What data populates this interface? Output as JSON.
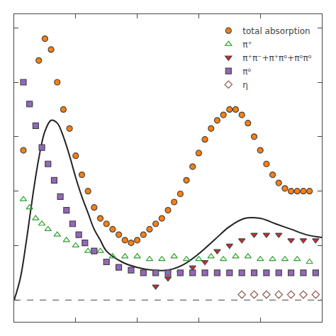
{
  "chart_data": {
    "type": "scatter",
    "xlim": [
      0,
      100
    ],
    "ylim": [
      -8,
      105
    ],
    "xticks": [
      0,
      20,
      40,
      60,
      80,
      100
    ],
    "yticks": [
      0,
      20,
      40,
      60,
      80,
      100
    ],
    "grid": false,
    "tick_labels": false,
    "legend": "upper right",
    "series": [
      {
        "type": "line",
        "line_style": "solid",
        "x": [
          0,
          2,
          4,
          6,
          8,
          10,
          12,
          14,
          16,
          18,
          20,
          22,
          24,
          26,
          28,
          30,
          35,
          40,
          45,
          50,
          55,
          60,
          65,
          70,
          75,
          80,
          85,
          90,
          95,
          100
        ],
        "values": [
          0,
          8,
          22,
          38,
          52,
          62,
          66,
          65,
          60,
          53,
          45,
          38,
          32,
          26,
          22,
          18,
          14,
          12,
          11,
          11,
          13,
          17,
          22,
          27,
          30,
          30,
          28,
          26,
          24,
          23
        ]
      },
      {
        "name": "total absorption",
        "type": "scatter",
        "marker": "circle",
        "x": [
          3,
          5,
          8,
          10,
          12,
          14,
          16,
          18,
          20,
          22,
          24,
          26,
          28,
          30,
          32,
          34,
          36,
          38,
          40,
          42,
          44,
          46,
          48,
          50,
          52,
          54,
          56,
          58,
          60,
          62,
          64,
          66,
          68,
          70,
          72,
          74,
          76,
          78,
          80,
          82,
          84,
          86,
          88,
          90,
          92,
          94,
          96
        ],
        "values": [
          55,
          72,
          88,
          96,
          92,
          80,
          70,
          63,
          53,
          46,
          40,
          34,
          30,
          28,
          26,
          24,
          22,
          21,
          22,
          24,
          26,
          28,
          30,
          33,
          36,
          39,
          44,
          49,
          54,
          59,
          63,
          66,
          68,
          70,
          70,
          68,
          65,
          60,
          55,
          50,
          46,
          43,
          41,
          40,
          40,
          40,
          40
        ]
      },
      {
        "name": "π⁺",
        "type": "scatter",
        "marker": "triangle-up-open",
        "x": [
          3,
          5,
          7,
          9,
          11,
          14,
          17,
          20,
          24,
          28,
          32,
          36,
          40,
          44,
          48,
          52,
          56,
          60,
          64,
          68,
          72,
          76,
          80,
          84,
          88,
          92,
          96
        ],
        "values": [
          37,
          34,
          30,
          28,
          26,
          24,
          22,
          20,
          18,
          18,
          16,
          16,
          16,
          15,
          15,
          16,
          15,
          15,
          16,
          15,
          16,
          16,
          15,
          15,
          15,
          15,
          14
        ]
      },
      {
        "name": "π⁺π⁻+π⁺πᵒ+πᵒπᵒ",
        "type": "scatter",
        "marker": "triangle-down",
        "x": [
          46,
          50,
          54,
          58,
          62,
          66,
          70,
          74,
          78,
          82,
          86,
          90,
          94,
          98
        ],
        "values": [
          5,
          8,
          10,
          12,
          14,
          18,
          20,
          22,
          24,
          24,
          24,
          22,
          22,
          22
        ]
      },
      {
        "name": "πᵒ",
        "type": "scatter",
        "marker": "square",
        "x": [
          3,
          5,
          7,
          9,
          11,
          13,
          15,
          17,
          19,
          21,
          23,
          26,
          30,
          34,
          38,
          42,
          46,
          50,
          54,
          58,
          62,
          66,
          70,
          74,
          78,
          82,
          86,
          90,
          94,
          98
        ],
        "values": [
          80,
          72,
          64,
          56,
          50,
          44,
          38,
          33,
          28,
          24,
          21,
          18,
          14,
          12,
          11,
          10,
          10,
          10,
          10,
          10,
          10,
          10,
          10,
          10,
          10,
          10,
          10,
          10,
          10,
          10
        ]
      },
      {
        "name": "η",
        "type": "scatter",
        "marker": "diamond-open",
        "x": [
          74,
          78,
          82,
          86,
          90,
          94,
          98
        ],
        "values": [
          2,
          2,
          2,
          2,
          2,
          2,
          2
        ]
      }
    ],
    "reference_lines": [
      {
        "y": 0,
        "line_style": "dashed"
      }
    ]
  }
}
